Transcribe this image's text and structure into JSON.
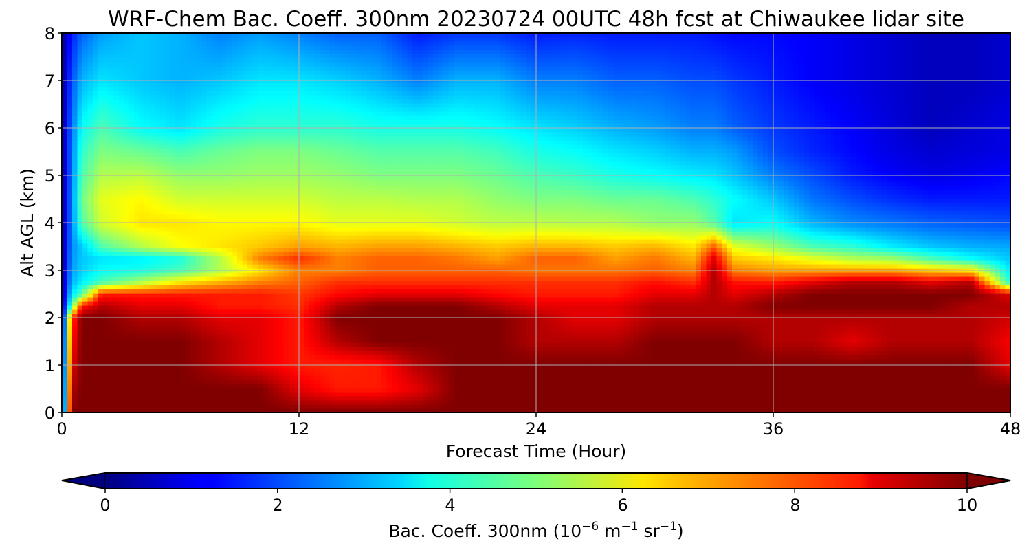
{
  "chart_data": {
    "type": "heatmap",
    "title": "WRF-Chem Bac. Coeff. 300nm  20230724 00UTC 48h fcst at Chiwaukee lidar site",
    "xlabel": "Forecast Time (Hour)",
    "ylabel": "Alt AGL (km)",
    "xlim": [
      0,
      48
    ],
    "ylim": [
      0,
      8
    ],
    "xticks": [
      "0",
      "12",
      "24",
      "36",
      "48"
    ],
    "yticks": [
      "0",
      "1",
      "2",
      "3",
      "4",
      "5",
      "6",
      "7",
      "8"
    ],
    "grid": true,
    "colormap": "jet",
    "colorbar": {
      "orientation": "horizontal",
      "placement": "bottom",
      "extend": "both",
      "min": 0,
      "max": 10,
      "ticks": [
        "0",
        "2",
        "4",
        "6",
        "8",
        "10"
      ],
      "label_main": "Bac. Coeff. 300nm  (10",
      "label_exp1": "−6",
      "label_mid": " m",
      "label_exp2": "−1",
      "label_mid2": " sr",
      "label_exp3": "−1",
      "label_end": ")"
    },
    "x": [
      0,
      0.5,
      1,
      2,
      4,
      6,
      8,
      10,
      12,
      14,
      16,
      18,
      20,
      22,
      24,
      26,
      28,
      30,
      32,
      33,
      34,
      36,
      38,
      40,
      42,
      44,
      46,
      48
    ],
    "y": [
      0,
      0.5,
      1,
      1.5,
      2,
      2.25,
      2.5,
      2.75,
      3,
      3.25,
      3.5,
      4,
      4.5,
      5,
      5.5,
      6,
      7,
      8
    ],
    "z": [
      [
        0.5,
        10,
        10,
        10,
        10,
        10,
        10,
        10,
        10,
        10,
        10,
        10,
        10,
        10,
        10,
        10,
        10,
        10,
        10,
        10,
        10,
        10,
        10,
        10,
        10,
        10,
        10,
        10
      ],
      [
        0.5,
        9.5,
        10,
        10,
        10,
        10,
        10,
        10,
        9,
        8.5,
        8.5,
        9,
        10,
        10,
        10,
        10,
        10,
        10,
        10,
        10,
        10,
        10,
        10,
        10,
        10,
        10,
        10,
        10
      ],
      [
        0.5,
        9,
        10,
        10,
        10,
        10,
        9.5,
        9,
        8.5,
        8.4,
        8.5,
        9.5,
        10,
        10,
        10,
        10,
        10,
        10,
        10,
        10,
        10,
        10,
        10,
        10,
        10,
        10,
        10,
        9
      ],
      [
        0.5,
        8.5,
        10,
        10,
        10,
        10,
        9.5,
        9,
        8.5,
        9.5,
        10,
        10,
        10,
        10,
        9.5,
        9.5,
        9.5,
        10,
        10,
        10,
        10,
        9.5,
        9.5,
        9,
        9.5,
        9.5,
        9.5,
        8.8
      ],
      [
        0.4,
        8,
        10,
        10,
        9.5,
        9.5,
        9,
        9,
        8.5,
        10,
        10,
        10,
        10,
        10,
        9.5,
        9,
        9,
        9.5,
        9.5,
        9.5,
        9.5,
        9.5,
        9.5,
        9.5,
        9.5,
        9.5,
        9.5,
        9.2
      ],
      [
        0.4,
        4.5,
        8.5,
        9.5,
        9,
        9,
        8.5,
        8.5,
        8.3,
        9.5,
        10,
        10,
        10,
        9.5,
        9,
        9,
        9,
        9.5,
        9.5,
        9.5,
        9.5,
        10,
        10,
        10,
        10,
        10,
        9.5,
        9.5
      ],
      [
        0.4,
        3.5,
        4.5,
        8.5,
        8.5,
        8.5,
        8.5,
        8.5,
        8.2,
        8.7,
        9,
        9,
        9,
        8.7,
        8.5,
        8.5,
        8.5,
        9,
        9,
        9.5,
        9,
        9.5,
        10,
        10,
        10,
        10,
        10,
        9
      ],
      [
        0.4,
        3,
        3.6,
        4.5,
        5.5,
        6.5,
        7,
        7.5,
        7.8,
        8.3,
        8.3,
        8.3,
        8.3,
        8.3,
        8.3,
        8.3,
        8.3,
        8.6,
        8.3,
        9.5,
        8.6,
        8.5,
        9,
        9.5,
        9.5,
        9,
        9.5,
        4
      ],
      [
        0.3,
        2.8,
        3.3,
        3.8,
        4,
        4.5,
        5.5,
        6.5,
        7.5,
        7.5,
        7.8,
        7.8,
        7.8,
        7.8,
        7.6,
        7.6,
        7.6,
        7.8,
        7.5,
        9.5,
        7.5,
        7.2,
        7.2,
        7.2,
        7.2,
        6.8,
        6.5,
        3.5
      ],
      [
        0.3,
        2.7,
        3.2,
        3.5,
        3.6,
        4,
        5.5,
        7.5,
        8.3,
        7.5,
        7.8,
        7.8,
        7.6,
        7.2,
        7.8,
        7.8,
        7.2,
        7.6,
        7,
        9,
        6.8,
        6.5,
        6,
        5.5,
        5.3,
        4.5,
        3.8,
        3.2
      ],
      [
        0.3,
        2.6,
        3.2,
        4.5,
        5.5,
        6.2,
        6.5,
        6.8,
        7.2,
        7,
        7.2,
        7.2,
        7,
        6.8,
        7,
        7,
        6.8,
        7,
        6.5,
        7.8,
        6,
        5.3,
        4.5,
        4.2,
        3.6,
        3.2,
        3,
        2.9
      ],
      [
        0.3,
        2.5,
        4.5,
        5.8,
        6.5,
        6.5,
        6.3,
        6.3,
        6.3,
        6,
        6,
        6,
        5.8,
        5.6,
        5.6,
        5.5,
        5.5,
        5.2,
        5.2,
        4.6,
        3.5,
        3.8,
        3,
        2.6,
        2.4,
        2.2,
        2.1,
        2
      ],
      [
        0.3,
        2.5,
        4.8,
        6,
        6.3,
        5.8,
        5.8,
        5.8,
        5.8,
        5.6,
        5.6,
        5.5,
        5.5,
        5.2,
        5,
        5,
        4.8,
        4.8,
        4.5,
        4.2,
        3.8,
        3.2,
        2.4,
        2,
        1.7,
        1.5,
        1.5,
        1.5
      ],
      [
        0.3,
        2.4,
        4.5,
        5.5,
        5.6,
        5.2,
        5.2,
        5.3,
        5.3,
        5.2,
        5,
        5,
        5,
        4.8,
        4.5,
        4.3,
        4,
        3.8,
        3.6,
        3.5,
        3.2,
        2.5,
        2,
        1.5,
        1.2,
        1,
        1.1,
        1.3
      ],
      [
        0.3,
        2.4,
        4.2,
        5,
        4.8,
        4.5,
        4.8,
        5,
        5,
        4.8,
        4.6,
        4.6,
        4.6,
        4.4,
        4,
        3.8,
        3.5,
        3.3,
        3,
        3,
        2.8,
        2,
        1.6,
        1.3,
        1,
        0.8,
        0.9,
        1
      ],
      [
        0.3,
        2.3,
        3.8,
        4.5,
        3.8,
        3.5,
        4,
        4.2,
        4.2,
        4.2,
        4,
        4,
        4,
        3.8,
        3.5,
        3.3,
        3,
        2.8,
        2.5,
        2.5,
        2.2,
        1.8,
        1.5,
        1.2,
        0.9,
        0.6,
        0.8,
        1
      ],
      [
        0.2,
        2,
        3,
        3.5,
        3.2,
        3,
        3.2,
        3.5,
        3.5,
        3.3,
        3,
        2.5,
        3,
        3,
        2.5,
        2.5,
        2.2,
        2.2,
        2,
        2,
        1.8,
        1.5,
        1.2,
        1,
        0.8,
        0.6,
        0.6,
        0.8
      ],
      [
        0.2,
        1.5,
        2.2,
        2.8,
        3.2,
        3,
        2.5,
        2.8,
        2.5,
        2.2,
        2.2,
        1.5,
        1.8,
        1.8,
        1.5,
        1.6,
        1.5,
        1.5,
        1.5,
        1.4,
        1.3,
        1.3,
        1.2,
        1,
        0.8,
        0.6,
        0.6,
        0.8
      ]
    ]
  }
}
